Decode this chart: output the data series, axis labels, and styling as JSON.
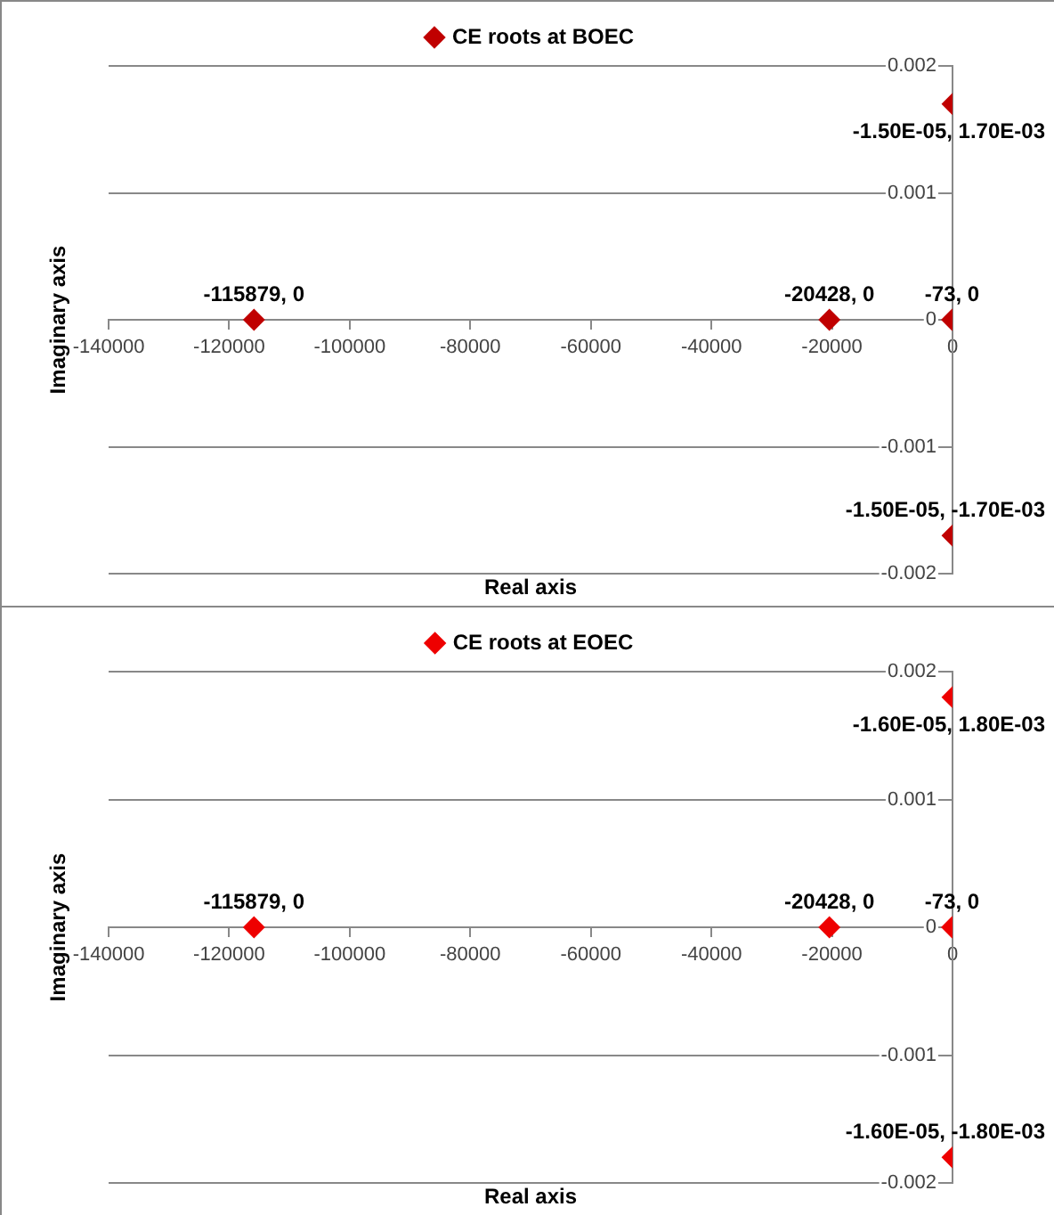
{
  "chart_data": [
    {
      "type": "scatter",
      "xlabel": "Real axis",
      "ylabel": "Imaginary axis",
      "xlim": [
        -140000,
        0
      ],
      "ylim": [
        -0.002,
        0.002
      ],
      "xticks": [
        -140000,
        -120000,
        -100000,
        -80000,
        -60000,
        -40000,
        -20000,
        0
      ],
      "yticks": [
        -0.002,
        -0.001,
        0,
        0.001,
        0.002
      ],
      "grid": "y",
      "legend": "top",
      "marker": "diamond",
      "series": [
        {
          "name": "CE roots at BOEC",
          "color": "#c00000",
          "x": [
            -115879,
            -20428,
            -73,
            -1.5e-05,
            -1.5e-05
          ],
          "values": [
            0,
            0,
            0,
            0.0017,
            -0.0017
          ],
          "value_labels": [
            "-115879, 0",
            "-20428, 0",
            "-73, 0",
            "-1.50E-05, 1.70E-03",
            "-1.50E-05, -1.70E-03"
          ]
        }
      ]
    },
    {
      "type": "scatter",
      "xlabel": "Real axis",
      "ylabel": "Imaginary axis",
      "xlim": [
        -140000,
        0
      ],
      "ylim": [
        -0.002,
        0.002
      ],
      "xticks": [
        -140000,
        -120000,
        -100000,
        -80000,
        -60000,
        -40000,
        -20000,
        0
      ],
      "yticks": [
        -0.002,
        -0.001,
        0,
        0.001,
        0.002
      ],
      "grid": "y",
      "legend": "top",
      "marker": "diamond",
      "series": [
        {
          "name": "CE roots at EOEC",
          "color": "#ee0000",
          "x": [
            -115879,
            -20428,
            -73,
            -1.6e-05,
            -1.6e-05
          ],
          "values": [
            0,
            0,
            0,
            0.0018,
            -0.0018
          ],
          "value_labels": [
            "-115879, 0",
            "-20428, 0",
            "-73, 0",
            "-1.60E-05, 1.80E-03",
            "-1.60E-05, -1.80E-03"
          ]
        }
      ]
    }
  ]
}
